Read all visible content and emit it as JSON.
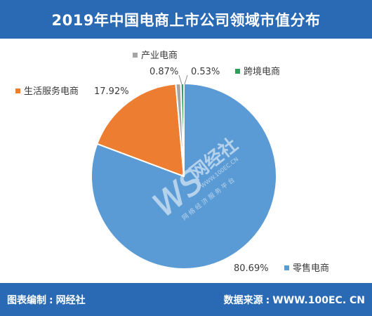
{
  "header": {
    "title": "2019年中国电商上市公司领域市值分布"
  },
  "footer": {
    "left_label": "图表编制",
    "left_value": "网经社",
    "right_label": "数据来源",
    "right_value": "WWW.100EC. CN"
  },
  "watermark": {
    "logo_text": "网经社",
    "logo_letters": "WS",
    "url": "WWW.100EC.CN",
    "tagline": "网 络 经 济 服 务 平 台"
  },
  "chart_data": {
    "type": "pie",
    "title": "",
    "slices": [
      {
        "name": "零售电商",
        "value": 80.69,
        "label": "80.69%",
        "color": "#5b9bd5"
      },
      {
        "name": "生活服务电商",
        "value": 17.92,
        "label": "17.92%",
        "color": "#ed7d31"
      },
      {
        "name": "产业电商",
        "value": 0.87,
        "label": "0.87%",
        "color": "#a5a5a5"
      },
      {
        "name": "跨境电商",
        "value": 0.53,
        "label": "0.53%",
        "color": "#2ca05a"
      }
    ]
  }
}
